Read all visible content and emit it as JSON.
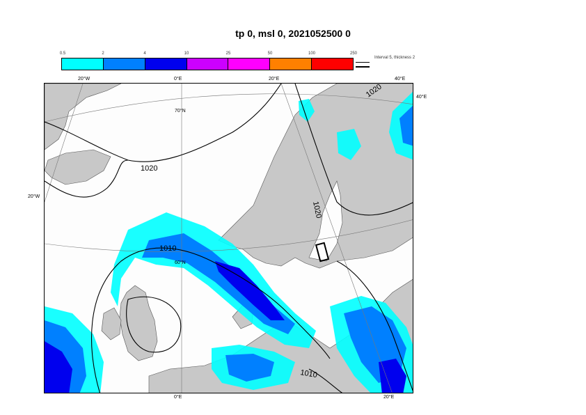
{
  "title": "tp 0, msl 0, 2021052500 0",
  "legend": {
    "ticks": [
      "0.5",
      "2",
      "4",
      "10",
      "25",
      "50",
      "100",
      "250"
    ],
    "colors": [
      "#00ffff",
      "#0080ff",
      "#0000ee",
      "#cc00ff",
      "#ff00ff",
      "#ff8000",
      "#ff0000"
    ],
    "note": "Interval 5, thickness 2"
  },
  "map": {
    "land_color": "#c8c8c8",
    "sea_color": "#ffffff",
    "contour_labels": [
      "1020",
      "1020",
      "1020",
      "1010",
      "1010"
    ],
    "coords": {
      "top_20w": "20°W",
      "top_0e": "0°E",
      "top_20e": "20°E",
      "top_40e": "40°E",
      "right_40e": "40°E",
      "left_20w": "20°W",
      "lat_70n": "70°N",
      "lat_60n": "60°N",
      "bottom_0e": "0°E",
      "bottom_20e": "20°E"
    }
  }
}
